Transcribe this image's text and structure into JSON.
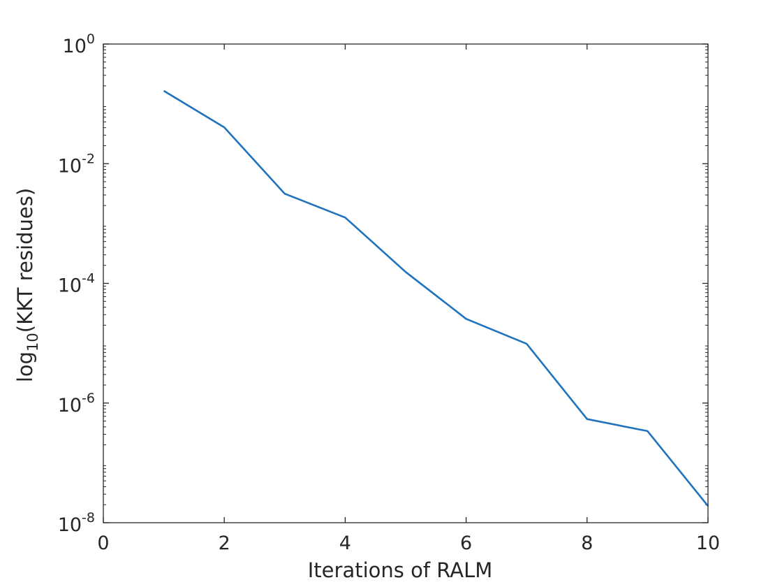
{
  "chart_data": {
    "type": "line",
    "title": "",
    "xlabel": "Iterations of RALM",
    "ylabel": {
      "prefix": "log",
      "subscript": "10",
      "suffix": "(KKT residues)"
    },
    "x_scale": "linear",
    "y_scale": "log",
    "xlim": [
      0,
      10
    ],
    "ylim": [
      1e-08,
      1
    ],
    "x_ticks": [
      {
        "value": 0,
        "label": "0"
      },
      {
        "value": 2,
        "label": "2"
      },
      {
        "value": 4,
        "label": "4"
      },
      {
        "value": 6,
        "label": "6"
      },
      {
        "value": 8,
        "label": "8"
      },
      {
        "value": 10,
        "label": "10"
      }
    ],
    "y_ticks": [
      {
        "value": 1,
        "base": "10",
        "exponent": "0"
      },
      {
        "value": 0.01,
        "base": "10",
        "exponent": "-2"
      },
      {
        "value": 0.0001,
        "base": "10",
        "exponent": "-4"
      },
      {
        "value": 1e-06,
        "base": "10",
        "exponent": "-6"
      },
      {
        "value": 1e-08,
        "base": "10",
        "exponent": "-8"
      }
    ],
    "grid": false,
    "box": true,
    "series": [
      {
        "color": "#1f72bd",
        "x": [
          1,
          2,
          3,
          4,
          5,
          6,
          7,
          8,
          9,
          10
        ],
        "y": [
          0.165,
          0.0405,
          0.00315,
          0.00126,
          0.000155,
          2.55e-05,
          9.8e-06,
          5.4e-07,
          3.4e-07,
          1.9e-08
        ]
      }
    ]
  }
}
